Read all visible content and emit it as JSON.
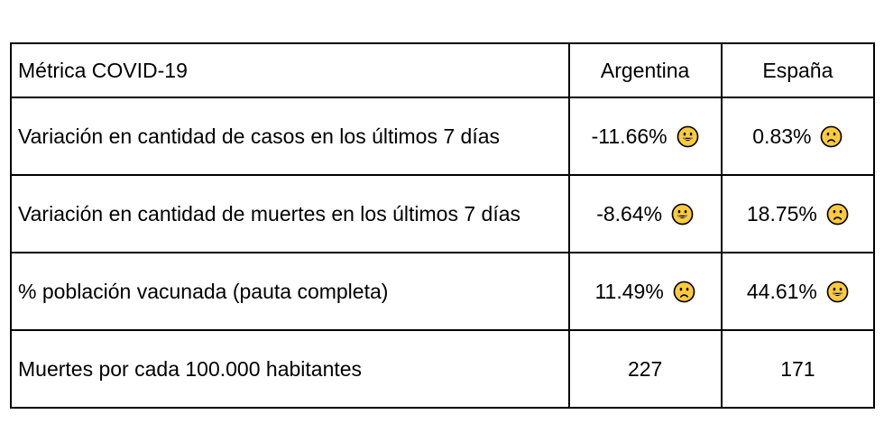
{
  "table": {
    "headers": {
      "metric": "Métrica COVID-19",
      "argentina": "Argentina",
      "spain": "España"
    },
    "rows": [
      {
        "metric": "Variación en cantidad de casos en los últimos 7 días",
        "argentina": {
          "value": "-11.66%",
          "icon": "grinning-face-icon"
        },
        "spain": {
          "value": "0.83%",
          "icon": "frowning-face-icon"
        }
      },
      {
        "metric": "Variación en cantidad de muertes en los últimos 7 días",
        "argentina": {
          "value": "-8.64%",
          "icon": "grinning-face-icon"
        },
        "spain": {
          "value": "18.75%",
          "icon": "frowning-face-icon"
        }
      },
      {
        "metric": "% población vacunada (pauta completa)",
        "argentina": {
          "value": "11.49%",
          "icon": "frowning-face-icon"
        },
        "spain": {
          "value": "44.61%",
          "icon": "grinning-face-icon"
        }
      },
      {
        "metric": "Muertes por cada 100.000 habitantes",
        "argentina": {
          "value": "227"
        },
        "spain": {
          "value": "171"
        }
      }
    ]
  },
  "colors": {
    "emoji_fill": "#FFCB3D",
    "emoji_stroke": "#000000",
    "border": "#000000",
    "text": "#000000"
  }
}
